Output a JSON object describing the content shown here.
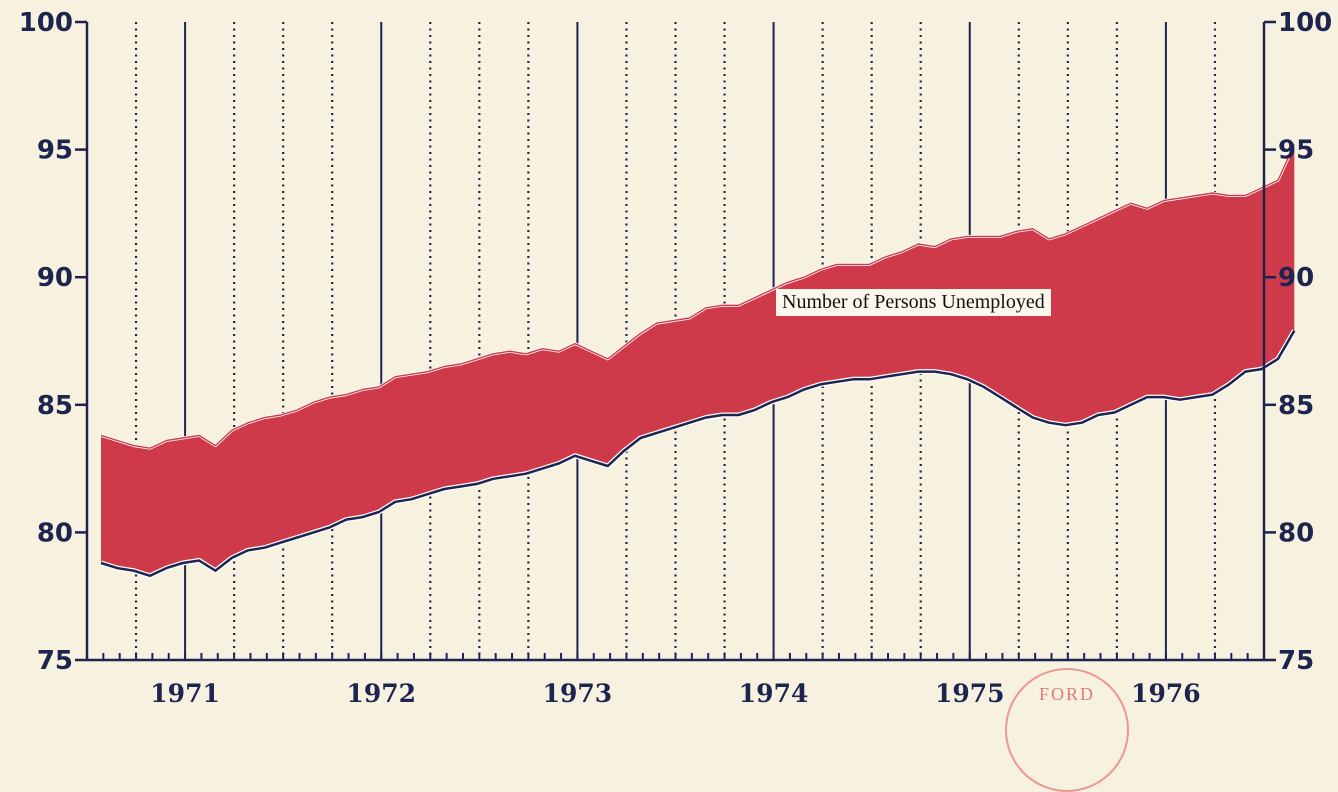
{
  "chart_data": {
    "type": "area",
    "title": "",
    "xlabel": "",
    "ylabel": "",
    "ylim": [
      75,
      100
    ],
    "yticks": [
      75,
      80,
      85,
      90,
      95,
      100
    ],
    "x_tick_labels": [
      "1971",
      "1972",
      "1973",
      "1974",
      "1975",
      "1976"
    ],
    "x": [
      "1970-07",
      "1970-08",
      "1970-09",
      "1970-10",
      "1970-11",
      "1970-12",
      "1971-01",
      "1971-02",
      "1971-03",
      "1971-04",
      "1971-05",
      "1971-06",
      "1971-07",
      "1971-08",
      "1971-09",
      "1971-10",
      "1971-11",
      "1971-12",
      "1972-01",
      "1972-02",
      "1972-03",
      "1972-04",
      "1972-05",
      "1972-06",
      "1972-07",
      "1972-08",
      "1972-09",
      "1972-10",
      "1972-11",
      "1972-12",
      "1973-01",
      "1973-02",
      "1973-03",
      "1973-04",
      "1973-05",
      "1973-06",
      "1973-07",
      "1973-08",
      "1973-09",
      "1973-10",
      "1973-11",
      "1973-12",
      "1974-01",
      "1974-02",
      "1974-03",
      "1974-04",
      "1974-05",
      "1974-06",
      "1974-07",
      "1974-08",
      "1974-09",
      "1974-10",
      "1974-11",
      "1974-12",
      "1975-01",
      "1975-02",
      "1975-03",
      "1975-04",
      "1975-05",
      "1975-06",
      "1975-07",
      "1975-08",
      "1975-09",
      "1975-10",
      "1975-11",
      "1975-12",
      "1976-01",
      "1976-02",
      "1976-03",
      "1976-04",
      "1976-05",
      "1976-06",
      "1976-07",
      "1976-08"
    ],
    "series": [
      {
        "role": "upper",
        "values": [
          83.8,
          83.6,
          83.4,
          83.3,
          83.6,
          83.7,
          83.8,
          83.4,
          84.0,
          84.3,
          84.5,
          84.6,
          84.8,
          85.1,
          85.3,
          85.4,
          85.6,
          85.7,
          86.1,
          86.2,
          86.3,
          86.5,
          86.6,
          86.8,
          87.0,
          87.1,
          87.0,
          87.2,
          87.1,
          87.4,
          87.1,
          86.8,
          87.3,
          87.8,
          88.2,
          88.3,
          88.4,
          88.8,
          88.9,
          88.9,
          89.2,
          89.5,
          89.8,
          90.0,
          90.3,
          90.5,
          90.5,
          90.5,
          90.8,
          91.0,
          91.3,
          91.2,
          91.5,
          91.6,
          91.6,
          91.6,
          91.8,
          91.9,
          91.5,
          91.7,
          92.0,
          92.3,
          92.6,
          92.9,
          92.7,
          93.0,
          93.1,
          93.2,
          93.3,
          93.2,
          93.2,
          93.5,
          93.8,
          95.2
        ]
      },
      {
        "role": "lower",
        "values": [
          78.8,
          78.6,
          78.5,
          78.3,
          78.6,
          78.8,
          78.9,
          78.5,
          79.0,
          79.3,
          79.4,
          79.6,
          79.8,
          80.0,
          80.2,
          80.5,
          80.6,
          80.8,
          81.2,
          81.3,
          81.5,
          81.7,
          81.8,
          81.9,
          82.1,
          82.2,
          82.3,
          82.5,
          82.7,
          83.0,
          82.8,
          82.6,
          83.2,
          83.7,
          83.9,
          84.1,
          84.3,
          84.5,
          84.6,
          84.6,
          84.8,
          85.1,
          85.3,
          85.6,
          85.8,
          85.9,
          86.0,
          86.0,
          86.1,
          86.2,
          86.3,
          86.3,
          86.2,
          86.0,
          85.7,
          85.3,
          84.9,
          84.5,
          84.3,
          84.2,
          84.3,
          84.6,
          84.7,
          85.0,
          85.3,
          85.3,
          85.2,
          85.3,
          85.4,
          85.8,
          86.3,
          86.4,
          86.8,
          87.9
        ]
      },
      {
        "role": "band",
        "name": "Number of Persons Unemployed"
      }
    ],
    "grid": true,
    "fill_color": "#cf3a4a",
    "line_color": "#1d2450",
    "upper_edge_color": "#ffffff"
  },
  "stamp": {
    "text": "FORD"
  }
}
